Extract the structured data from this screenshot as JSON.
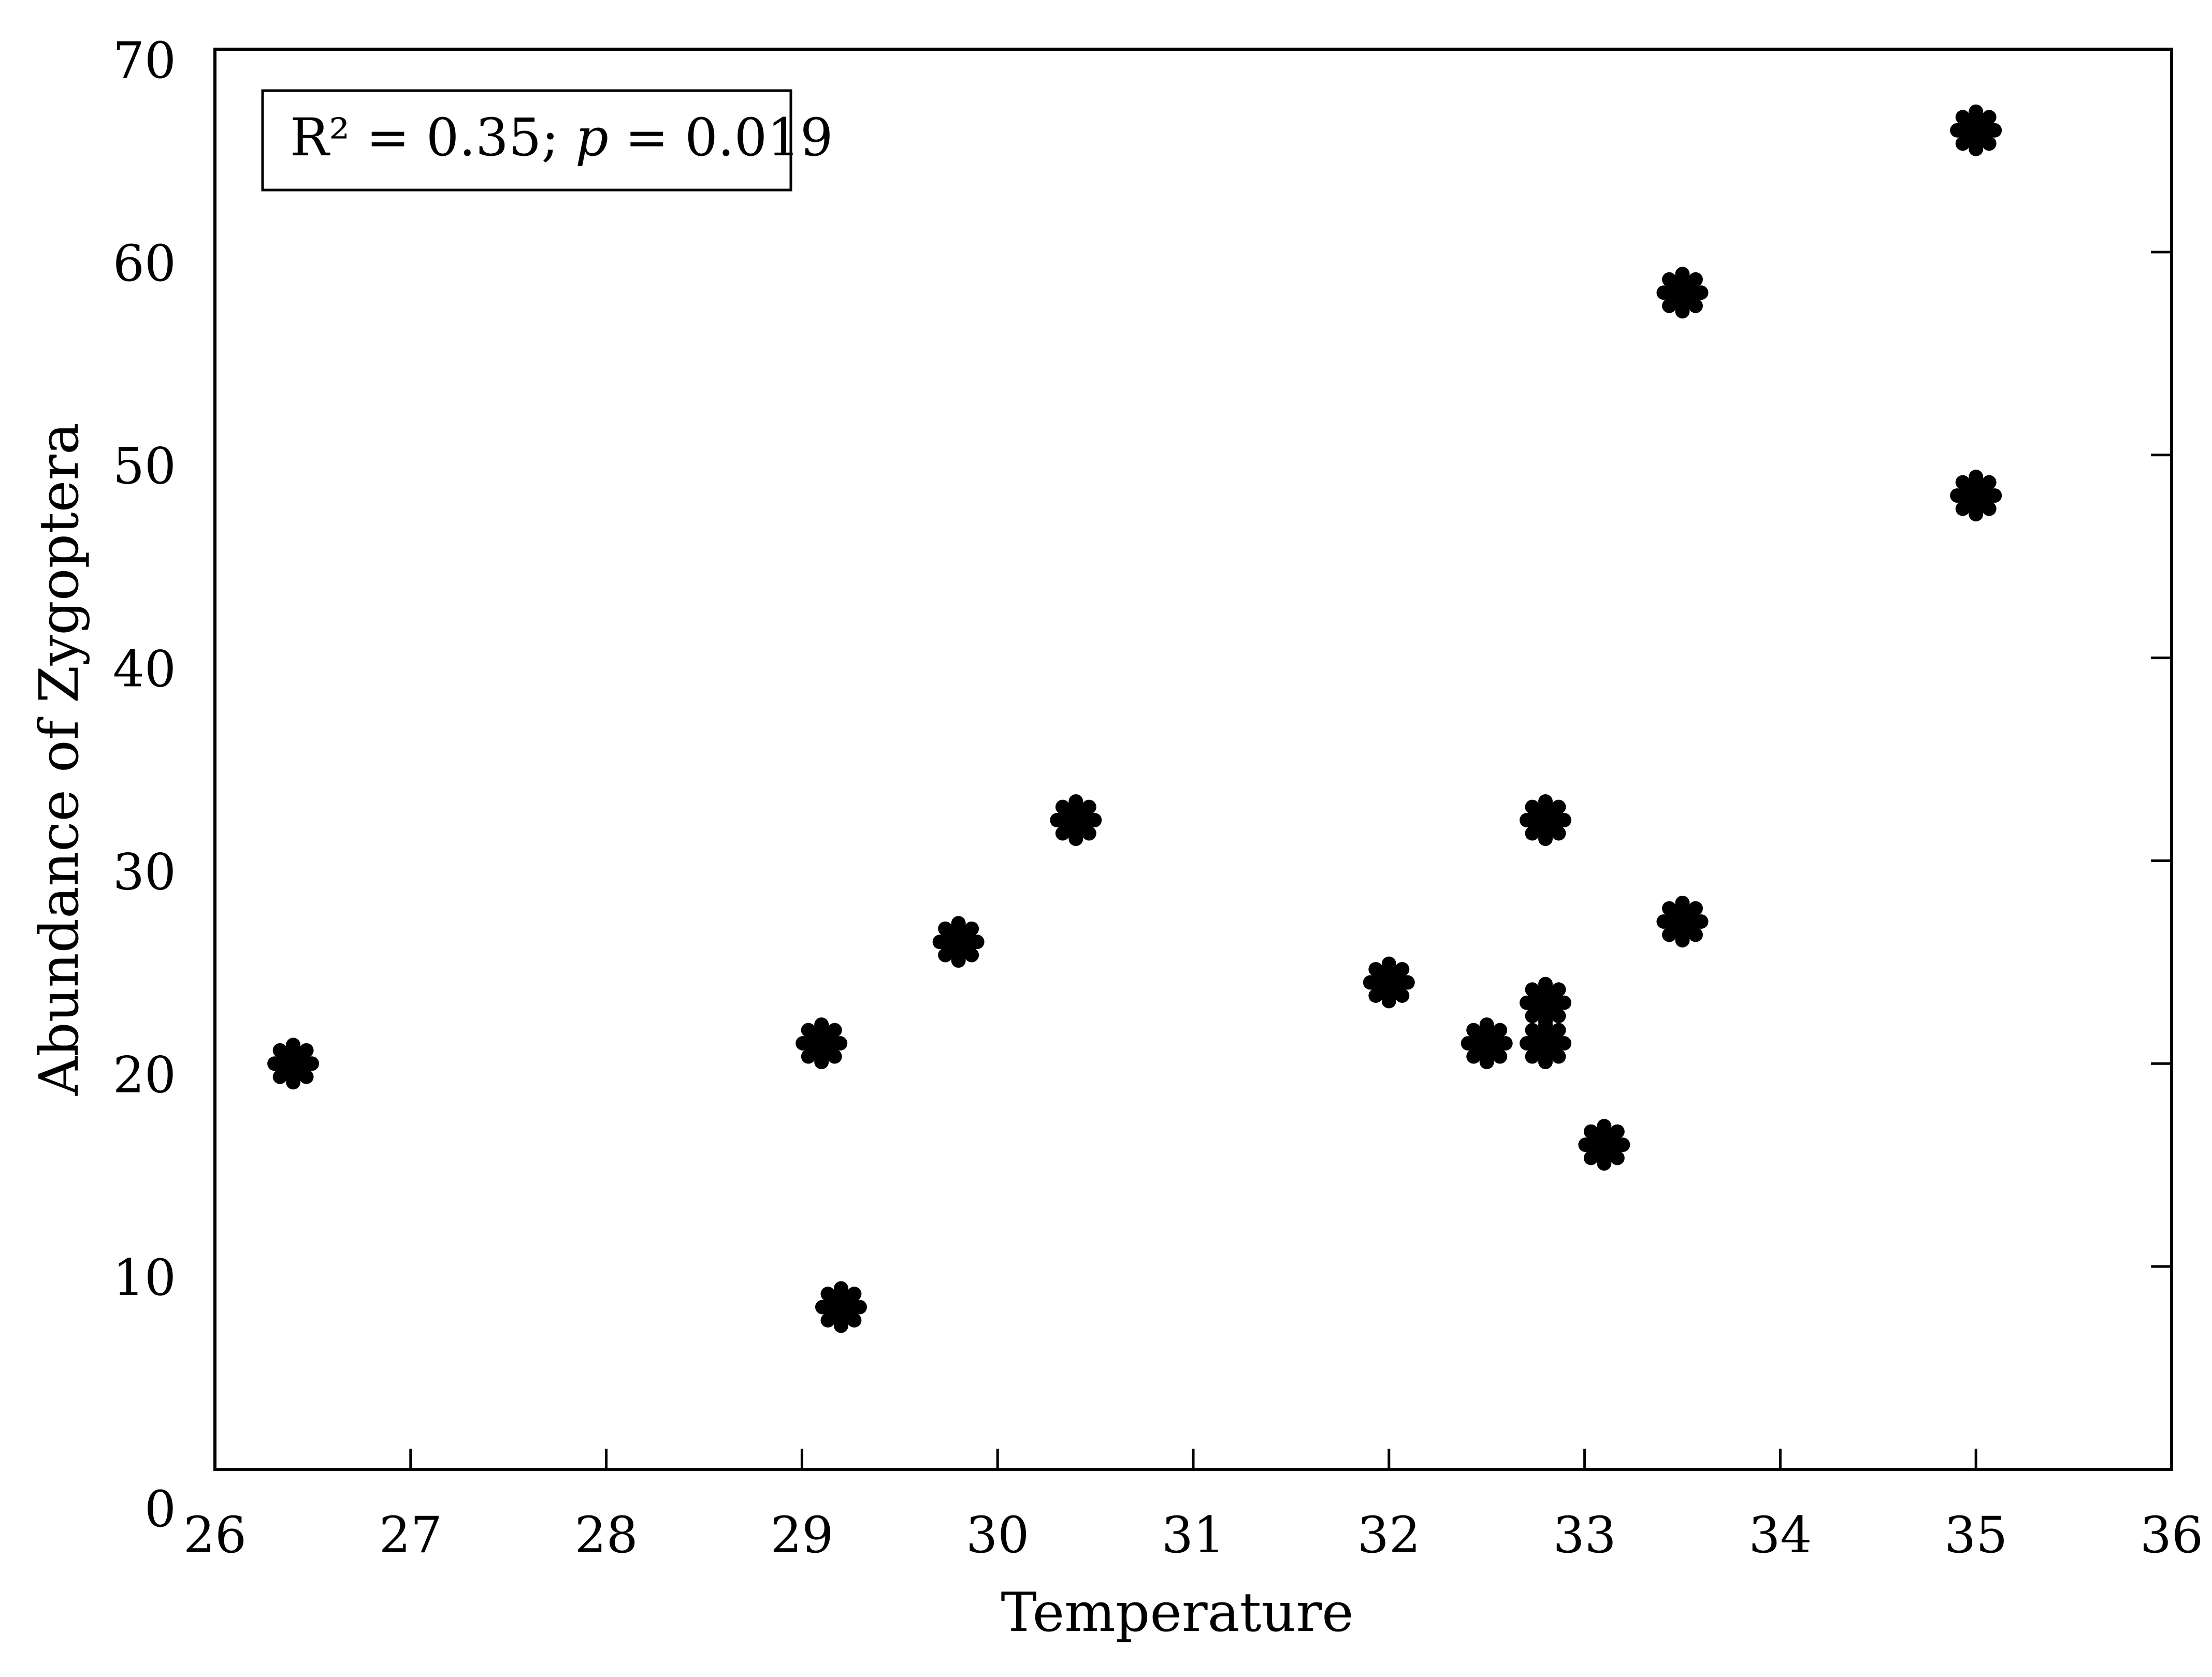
{
  "chart_data": {
    "type": "scatter",
    "xlabel": "Temperature",
    "ylabel": "Abundance of Zygoptera",
    "xlim": [
      26,
      36
    ],
    "ylim": [
      0,
      70
    ],
    "x_ticks": [
      26,
      27,
      28,
      29,
      30,
      31,
      32,
      33,
      34,
      35,
      36
    ],
    "y_ticks": [
      0,
      10,
      20,
      30,
      40,
      50,
      60,
      70
    ],
    "grid": false,
    "annotation": {
      "r2_label": "R² = 0.35;",
      "p_symbol": "p",
      "p_value": " = 0.019"
    },
    "marker_color": "#000000",
    "points": [
      {
        "x": 26.4,
        "y": 20
      },
      {
        "x": 29.1,
        "y": 21
      },
      {
        "x": 29.2,
        "y": 8
      },
      {
        "x": 29.8,
        "y": 26
      },
      {
        "x": 30.4,
        "y": 32
      },
      {
        "x": 32.0,
        "y": 24
      },
      {
        "x": 32.5,
        "y": 21
      },
      {
        "x": 32.8,
        "y": 32
      },
      {
        "x": 32.8,
        "y": 23
      },
      {
        "x": 32.8,
        "y": 21
      },
      {
        "x": 33.1,
        "y": 16
      },
      {
        "x": 33.5,
        "y": 58
      },
      {
        "x": 33.5,
        "y": 27
      },
      {
        "x": 35.0,
        "y": 66
      },
      {
        "x": 35.0,
        "y": 48
      }
    ]
  }
}
